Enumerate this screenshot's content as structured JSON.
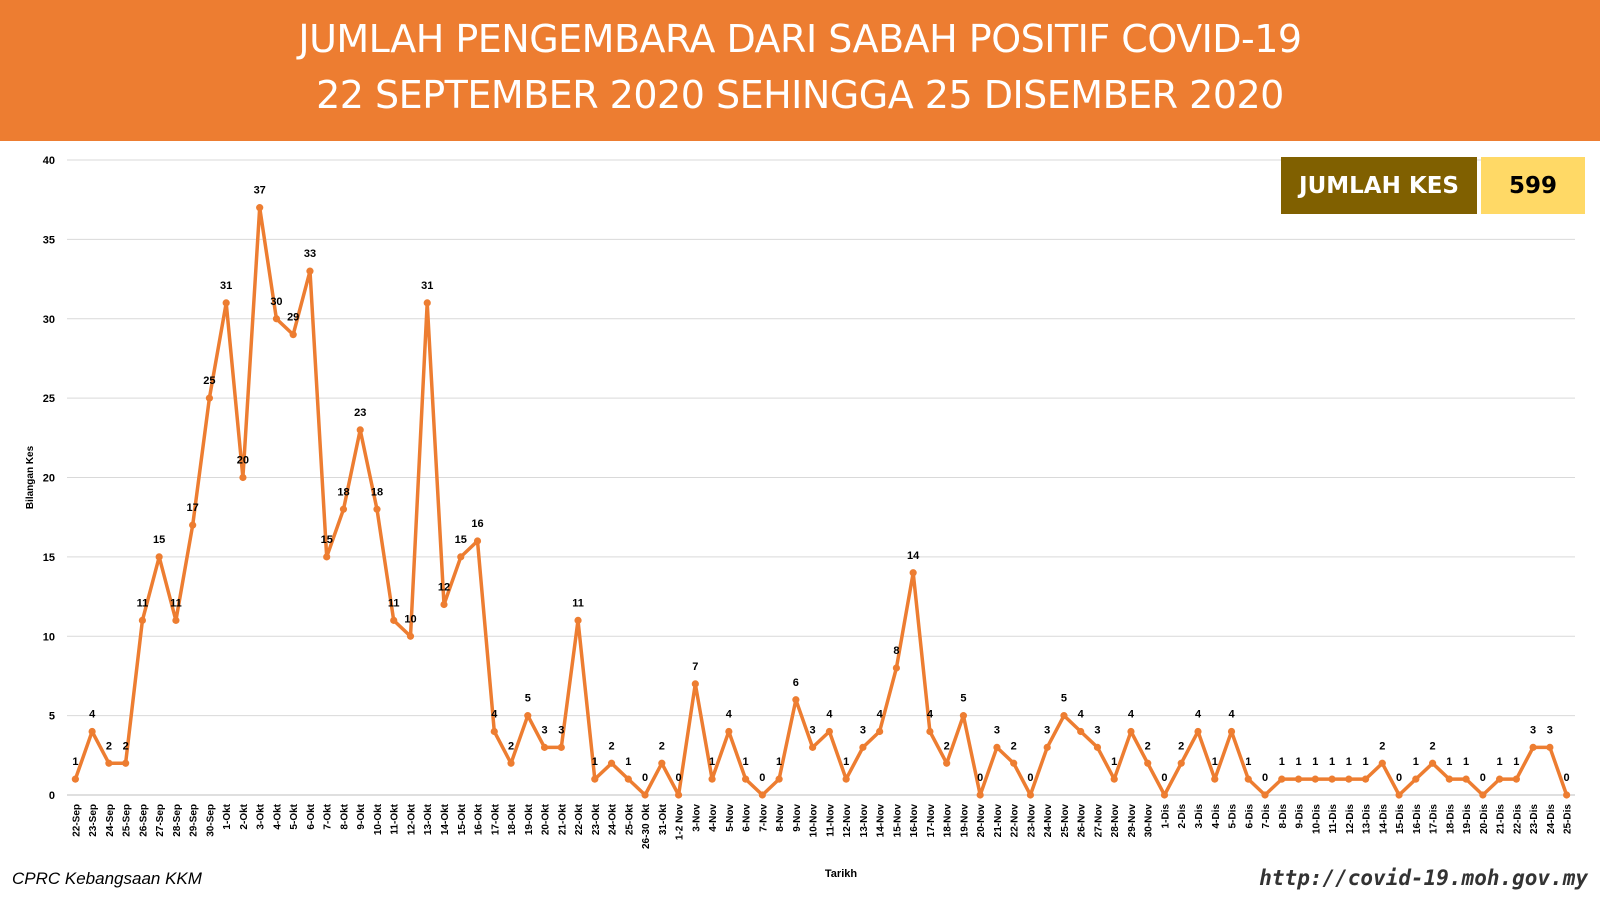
{
  "header": {
    "title_line1": "JUMLAH PENGEMBARA DARI SABAH POSITIF COVID-19",
    "title_line2": "22 SEPTEMBER 2020 SEHINGGA 25 DISEMBER 2020",
    "background_color": "#ED7D31"
  },
  "total": {
    "label": "JUMLAH KES",
    "value": "599"
  },
  "footer": {
    "credit": "CPRC Kebangsaan KKM",
    "url": "http://covid-19.moh.gov.my"
  },
  "chart_data": {
    "type": "line",
    "xlabel": "Tarikh",
    "ylabel": "Bilangan Kes",
    "ylim": [
      0,
      40
    ],
    "yticks": [
      0,
      5,
      10,
      15,
      20,
      25,
      30,
      35,
      40
    ],
    "grid": true,
    "color": "#ED7D31",
    "categories": [
      "22-Sep",
      "23-Sep",
      "24-Sep",
      "25-Sep",
      "26-Sep",
      "27-Sep",
      "28-Sep",
      "29-Sep",
      "30-Sep",
      "1-Okt",
      "2-Okt",
      "3-Okt",
      "4-Okt",
      "5-Okt",
      "6-Okt",
      "7-Okt",
      "8-Okt",
      "9-Okt",
      "10-Okt",
      "11-Okt",
      "12-Okt",
      "13-Okt",
      "14-Okt",
      "15-Okt",
      "16-Okt",
      "17-Okt",
      "18-Okt",
      "19-Okt",
      "20-Okt",
      "21-Okt",
      "22-Okt",
      "23-Okt",
      "24-Okt",
      "25-Okt",
      "26-30 Okt",
      "31-Okt",
      "1-2 Nov",
      "3-Nov",
      "4-Nov",
      "5-Nov",
      "6-Nov",
      "7-Nov",
      "8-Nov",
      "9-Nov",
      "10-Nov",
      "11-Nov",
      "12-Nov",
      "13-Nov",
      "14-Nov",
      "15-Nov",
      "16-Nov",
      "17-Nov",
      "18-Nov",
      "19-Nov",
      "20-Nov",
      "21-Nov",
      "22-Nov",
      "23-Nov",
      "24-Nov",
      "25-Nov",
      "26-Nov",
      "27-Nov",
      "28-Nov",
      "29-Nov",
      "30-Nov",
      "1-Dis",
      "2-Dis",
      "3-Dis",
      "4-Dis",
      "5-Dis",
      "6-Dis",
      "7-Dis",
      "8-Dis",
      "9-Dis",
      "10-Dis",
      "11-Dis",
      "12-Dis",
      "13-Dis",
      "14-Dis",
      "15-Dis",
      "16-Dis",
      "17-Dis",
      "18-Dis",
      "19-Dis",
      "20-Dis",
      "21-Dis",
      "22-Dis",
      "23-Dis",
      "24-Dis",
      "25-Dis"
    ],
    "values": [
      1,
      4,
      2,
      2,
      11,
      15,
      11,
      17,
      25,
      31,
      20,
      37,
      30,
      29,
      33,
      15,
      18,
      23,
      18,
      11,
      10,
      31,
      12,
      15,
      16,
      4,
      2,
      5,
      3,
      3,
      11,
      1,
      2,
      1,
      0,
      2,
      0,
      7,
      1,
      4,
      1,
      0,
      1,
      6,
      3,
      4,
      1,
      3,
      4,
      8,
      14,
      4,
      2,
      5,
      0,
      3,
      2,
      0,
      3,
      5,
      4,
      3,
      1,
      4,
      2,
      0,
      2,
      4,
      1,
      4,
      1,
      0,
      1,
      1,
      1,
      1,
      1,
      1,
      2,
      0,
      1,
      2,
      1,
      1,
      0,
      1,
      1,
      3,
      3,
      0
    ]
  }
}
